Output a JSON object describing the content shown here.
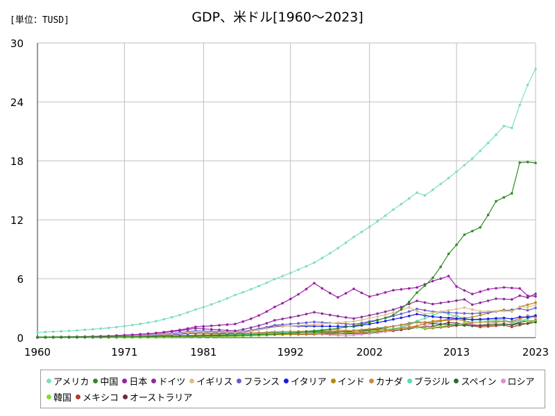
{
  "unit_label": "[単位：TUSD]",
  "chart_data": {
    "type": "line",
    "title": "GDP、米ドル[1960～2023]",
    "xlabel": "",
    "ylabel": "",
    "xlim": [
      1960,
      2023
    ],
    "ylim": [
      0,
      30
    ],
    "x_ticks": [
      1960,
      1971,
      1981,
      1992,
      2002,
      2013,
      2023
    ],
    "y_ticks": [
      0,
      6,
      12,
      18,
      24,
      30
    ],
    "grid": true,
    "legend_position": "bottom",
    "series": [
      {
        "name": "アメリカ",
        "color": "#7fdcc8",
        "points": [
          [
            1960,
            0.54
          ],
          [
            1965,
            0.74
          ],
          [
            1970,
            1.07
          ],
          [
            1975,
            1.68
          ],
          [
            1980,
            2.86
          ],
          [
            1985,
            4.34
          ],
          [
            1990,
            5.96
          ],
          [
            1995,
            7.64
          ],
          [
            2000,
            10.25
          ],
          [
            2005,
            13.04
          ],
          [
            2008,
            14.77
          ],
          [
            2009,
            14.48
          ],
          [
            2010,
            15.05
          ],
          [
            2015,
            18.24
          ],
          [
            2019,
            21.54
          ],
          [
            2020,
            21.35
          ],
          [
            2021,
            23.68
          ],
          [
            2022,
            25.74
          ],
          [
            2023,
            27.36
          ]
        ]
      },
      {
        "name": "中国",
        "color": "#2e8b22",
        "points": [
          [
            1960,
            0.06
          ],
          [
            1970,
            0.09
          ],
          [
            1980,
            0.19
          ],
          [
            1990,
            0.36
          ],
          [
            2000,
            1.21
          ],
          [
            2005,
            2.29
          ],
          [
            2008,
            4.59
          ],
          [
            2010,
            6.09
          ],
          [
            2012,
            8.53
          ],
          [
            2014,
            10.48
          ],
          [
            2016,
            11.23
          ],
          [
            2018,
            13.89
          ],
          [
            2019,
            14.28
          ],
          [
            2020,
            14.69
          ],
          [
            2021,
            17.82
          ],
          [
            2022,
            17.88
          ],
          [
            2023,
            17.79
          ]
        ]
      },
      {
        "name": "日本",
        "color": "#9b1fa8",
        "points": [
          [
            1960,
            0.04
          ],
          [
            1970,
            0.21
          ],
          [
            1980,
            1.1
          ],
          [
            1985,
            1.39
          ],
          [
            1990,
            3.13
          ],
          [
            1995,
            5.55
          ],
          [
            1998,
            4.1
          ],
          [
            2000,
            4.97
          ],
          [
            2002,
            4.18
          ],
          [
            2005,
            4.83
          ],
          [
            2008,
            5.11
          ],
          [
            2010,
            5.76
          ],
          [
            2012,
            6.27
          ],
          [
            2013,
            5.21
          ],
          [
            2015,
            4.44
          ],
          [
            2017,
            4.93
          ],
          [
            2019,
            5.12
          ],
          [
            2021,
            5.01
          ],
          [
            2022,
            4.26
          ],
          [
            2023,
            4.21
          ]
        ]
      },
      {
        "name": "ドイツ",
        "color": "#8e2a9c",
        "points": [
          [
            1970,
            0.22
          ],
          [
            1980,
            0.95
          ],
          [
            1985,
            0.7
          ],
          [
            1990,
            1.77
          ],
          [
            1995,
            2.59
          ],
          [
            2000,
            1.95
          ],
          [
            2005,
            2.85
          ],
          [
            2008,
            3.75
          ],
          [
            2010,
            3.42
          ],
          [
            2014,
            3.89
          ],
          [
            2015,
            3.36
          ],
          [
            2018,
            3.97
          ],
          [
            2020,
            3.89
          ],
          [
            2021,
            4.28
          ],
          [
            2022,
            4.08
          ],
          [
            2023,
            4.46
          ]
        ]
      },
      {
        "name": "イギリス",
        "color": "#d8c088",
        "points": [
          [
            1960,
            0.07
          ],
          [
            1970,
            0.13
          ],
          [
            1980,
            0.56
          ],
          [
            1985,
            0.49
          ],
          [
            1990,
            1.09
          ],
          [
            1995,
            1.34
          ],
          [
            2000,
            1.66
          ],
          [
            2005,
            2.54
          ],
          [
            2007,
            3.09
          ],
          [
            2009,
            2.41
          ],
          [
            2014,
            3.06
          ],
          [
            2016,
            2.69
          ],
          [
            2020,
            2.7
          ],
          [
            2021,
            3.14
          ],
          [
            2022,
            3.09
          ],
          [
            2023,
            3.34
          ]
        ]
      },
      {
        "name": "フランス",
        "color": "#6a5acd",
        "points": [
          [
            1960,
            0.06
          ],
          [
            1970,
            0.15
          ],
          [
            1980,
            0.7
          ],
          [
            1985,
            0.55
          ],
          [
            1990,
            1.27
          ],
          [
            1995,
            1.6
          ],
          [
            2000,
            1.36
          ],
          [
            2005,
            2.2
          ],
          [
            2008,
            2.93
          ],
          [
            2010,
            2.65
          ],
          [
            2015,
            2.44
          ],
          [
            2019,
            2.73
          ],
          [
            2021,
            2.96
          ],
          [
            2022,
            2.78
          ],
          [
            2023,
            3.03
          ]
        ]
      },
      {
        "name": "イタリア",
        "color": "#1a1ae6",
        "points": [
          [
            1960,
            0.04
          ],
          [
            1970,
            0.11
          ],
          [
            1980,
            0.48
          ],
          [
            1985,
            0.44
          ],
          [
            1990,
            1.18
          ],
          [
            1995,
            1.17
          ],
          [
            2000,
            1.14
          ],
          [
            2005,
            1.86
          ],
          [
            2008,
            2.4
          ],
          [
            2010,
            2.13
          ],
          [
            2015,
            1.84
          ],
          [
            2019,
            2.01
          ],
          [
            2020,
            1.9
          ],
          [
            2021,
            2.11
          ],
          [
            2022,
            2.07
          ],
          [
            2023,
            2.25
          ]
        ]
      },
      {
        "name": "インド",
        "color": "#b8860b",
        "points": [
          [
            1960,
            0.04
          ],
          [
            1970,
            0.06
          ],
          [
            1980,
            0.19
          ],
          [
            1990,
            0.32
          ],
          [
            2000,
            0.47
          ],
          [
            2005,
            0.82
          ],
          [
            2008,
            1.2
          ],
          [
            2010,
            1.68
          ],
          [
            2015,
            2.1
          ],
          [
            2018,
            2.7
          ],
          [
            2019,
            2.84
          ],
          [
            2020,
            2.67
          ],
          [
            2021,
            3.15
          ],
          [
            2022,
            3.35
          ],
          [
            2023,
            3.57
          ]
        ]
      },
      {
        "name": "カナダ",
        "color": "#c88a44",
        "points": [
          [
            1960,
            0.04
          ],
          [
            1970,
            0.09
          ],
          [
            1980,
            0.27
          ],
          [
            1990,
            0.6
          ],
          [
            2000,
            0.74
          ],
          [
            2005,
            1.17
          ],
          [
            2008,
            1.55
          ],
          [
            2010,
            1.62
          ],
          [
            2013,
            1.85
          ],
          [
            2015,
            1.56
          ],
          [
            2020,
            1.65
          ],
          [
            2021,
            2.0
          ],
          [
            2022,
            2.16
          ],
          [
            2023,
            2.14
          ]
        ]
      },
      {
        "name": "ブラジル",
        "color": "#52e0a8",
        "points": [
          [
            1960,
            0.02
          ],
          [
            1970,
            0.04
          ],
          [
            1980,
            0.24
          ],
          [
            1990,
            0.46
          ],
          [
            1997,
            0.88
          ],
          [
            2000,
            0.66
          ],
          [
            2002,
            0.51
          ],
          [
            2005,
            0.89
          ],
          [
            2008,
            1.7
          ],
          [
            2011,
            2.62
          ],
          [
            2015,
            1.8
          ],
          [
            2016,
            1.8
          ],
          [
            2019,
            1.87
          ],
          [
            2020,
            1.48
          ],
          [
            2021,
            1.67
          ],
          [
            2022,
            1.95
          ],
          [
            2023,
            2.17
          ]
        ]
      },
      {
        "name": "スペイン",
        "color": "#2d6a2d",
        "points": [
          [
            1960,
            0.01
          ],
          [
            1970,
            0.04
          ],
          [
            1980,
            0.23
          ],
          [
            1990,
            0.54
          ],
          [
            2000,
            0.6
          ],
          [
            2005,
            1.16
          ],
          [
            2008,
            1.64
          ],
          [
            2010,
            1.43
          ],
          [
            2015,
            1.2
          ],
          [
            2019,
            1.39
          ],
          [
            2020,
            1.28
          ],
          [
            2021,
            1.43
          ],
          [
            2022,
            1.42
          ],
          [
            2023,
            1.58
          ]
        ]
      },
      {
        "name": "ロシア",
        "color": "#e38bd0",
        "points": [
          [
            1989,
            0.51
          ],
          [
            1992,
            0.46
          ],
          [
            1995,
            0.4
          ],
          [
            1999,
            0.2
          ],
          [
            2000,
            0.26
          ],
          [
            2005,
            0.76
          ],
          [
            2008,
            1.66
          ],
          [
            2009,
            1.22
          ],
          [
            2013,
            2.29
          ],
          [
            2015,
            1.36
          ],
          [
            2016,
            1.28
          ],
          [
            2019,
            1.69
          ],
          [
            2020,
            1.49
          ],
          [
            2021,
            1.84
          ],
          [
            2022,
            2.27
          ],
          [
            2023,
            2.02
          ]
        ]
      },
      {
        "name": "韓国",
        "color": "#7fdc33",
        "points": [
          [
            1960,
            0.004
          ],
          [
            1970,
            0.009
          ],
          [
            1980,
            0.065
          ],
          [
            1990,
            0.28
          ],
          [
            1997,
            0.57
          ],
          [
            1998,
            0.37
          ],
          [
            2000,
            0.58
          ],
          [
            2005,
            0.93
          ],
          [
            2008,
            1.05
          ],
          [
            2009,
            0.94
          ],
          [
            2014,
            1.48
          ],
          [
            2018,
            1.72
          ],
          [
            2020,
            1.64
          ],
          [
            2021,
            1.82
          ],
          [
            2022,
            1.67
          ],
          [
            2023,
            1.71
          ]
        ]
      },
      {
        "name": "メキシコ",
        "color": "#b03a2e",
        "points": [
          [
            1960,
            0.013
          ],
          [
            1970,
            0.035
          ],
          [
            1980,
            0.2
          ],
          [
            1990,
            0.31
          ],
          [
            1995,
            0.36
          ],
          [
            2000,
            0.74
          ],
          [
            2005,
            0.88
          ],
          [
            2008,
            1.11
          ],
          [
            2009,
            0.9
          ],
          [
            2014,
            1.32
          ],
          [
            2016,
            1.08
          ],
          [
            2019,
            1.27
          ],
          [
            2020,
            1.09
          ],
          [
            2021,
            1.27
          ],
          [
            2022,
            1.46
          ],
          [
            2023,
            1.79
          ]
        ]
      },
      {
        "name": "オーストラリア",
        "color": "#6b2d3a",
        "points": [
          [
            1960,
            0.019
          ],
          [
            1970,
            0.045
          ],
          [
            1980,
            0.15
          ],
          [
            1990,
            0.31
          ],
          [
            2000,
            0.4
          ],
          [
            2005,
            0.69
          ],
          [
            2008,
            1.05
          ],
          [
            2010,
            1.15
          ],
          [
            2012,
            1.54
          ],
          [
            2015,
            1.35
          ],
          [
            2016,
            1.21
          ],
          [
            2019,
            1.4
          ],
          [
            2020,
            1.33
          ],
          [
            2021,
            1.56
          ],
          [
            2022,
            1.7
          ],
          [
            2023,
            1.72
          ]
        ]
      }
    ]
  }
}
